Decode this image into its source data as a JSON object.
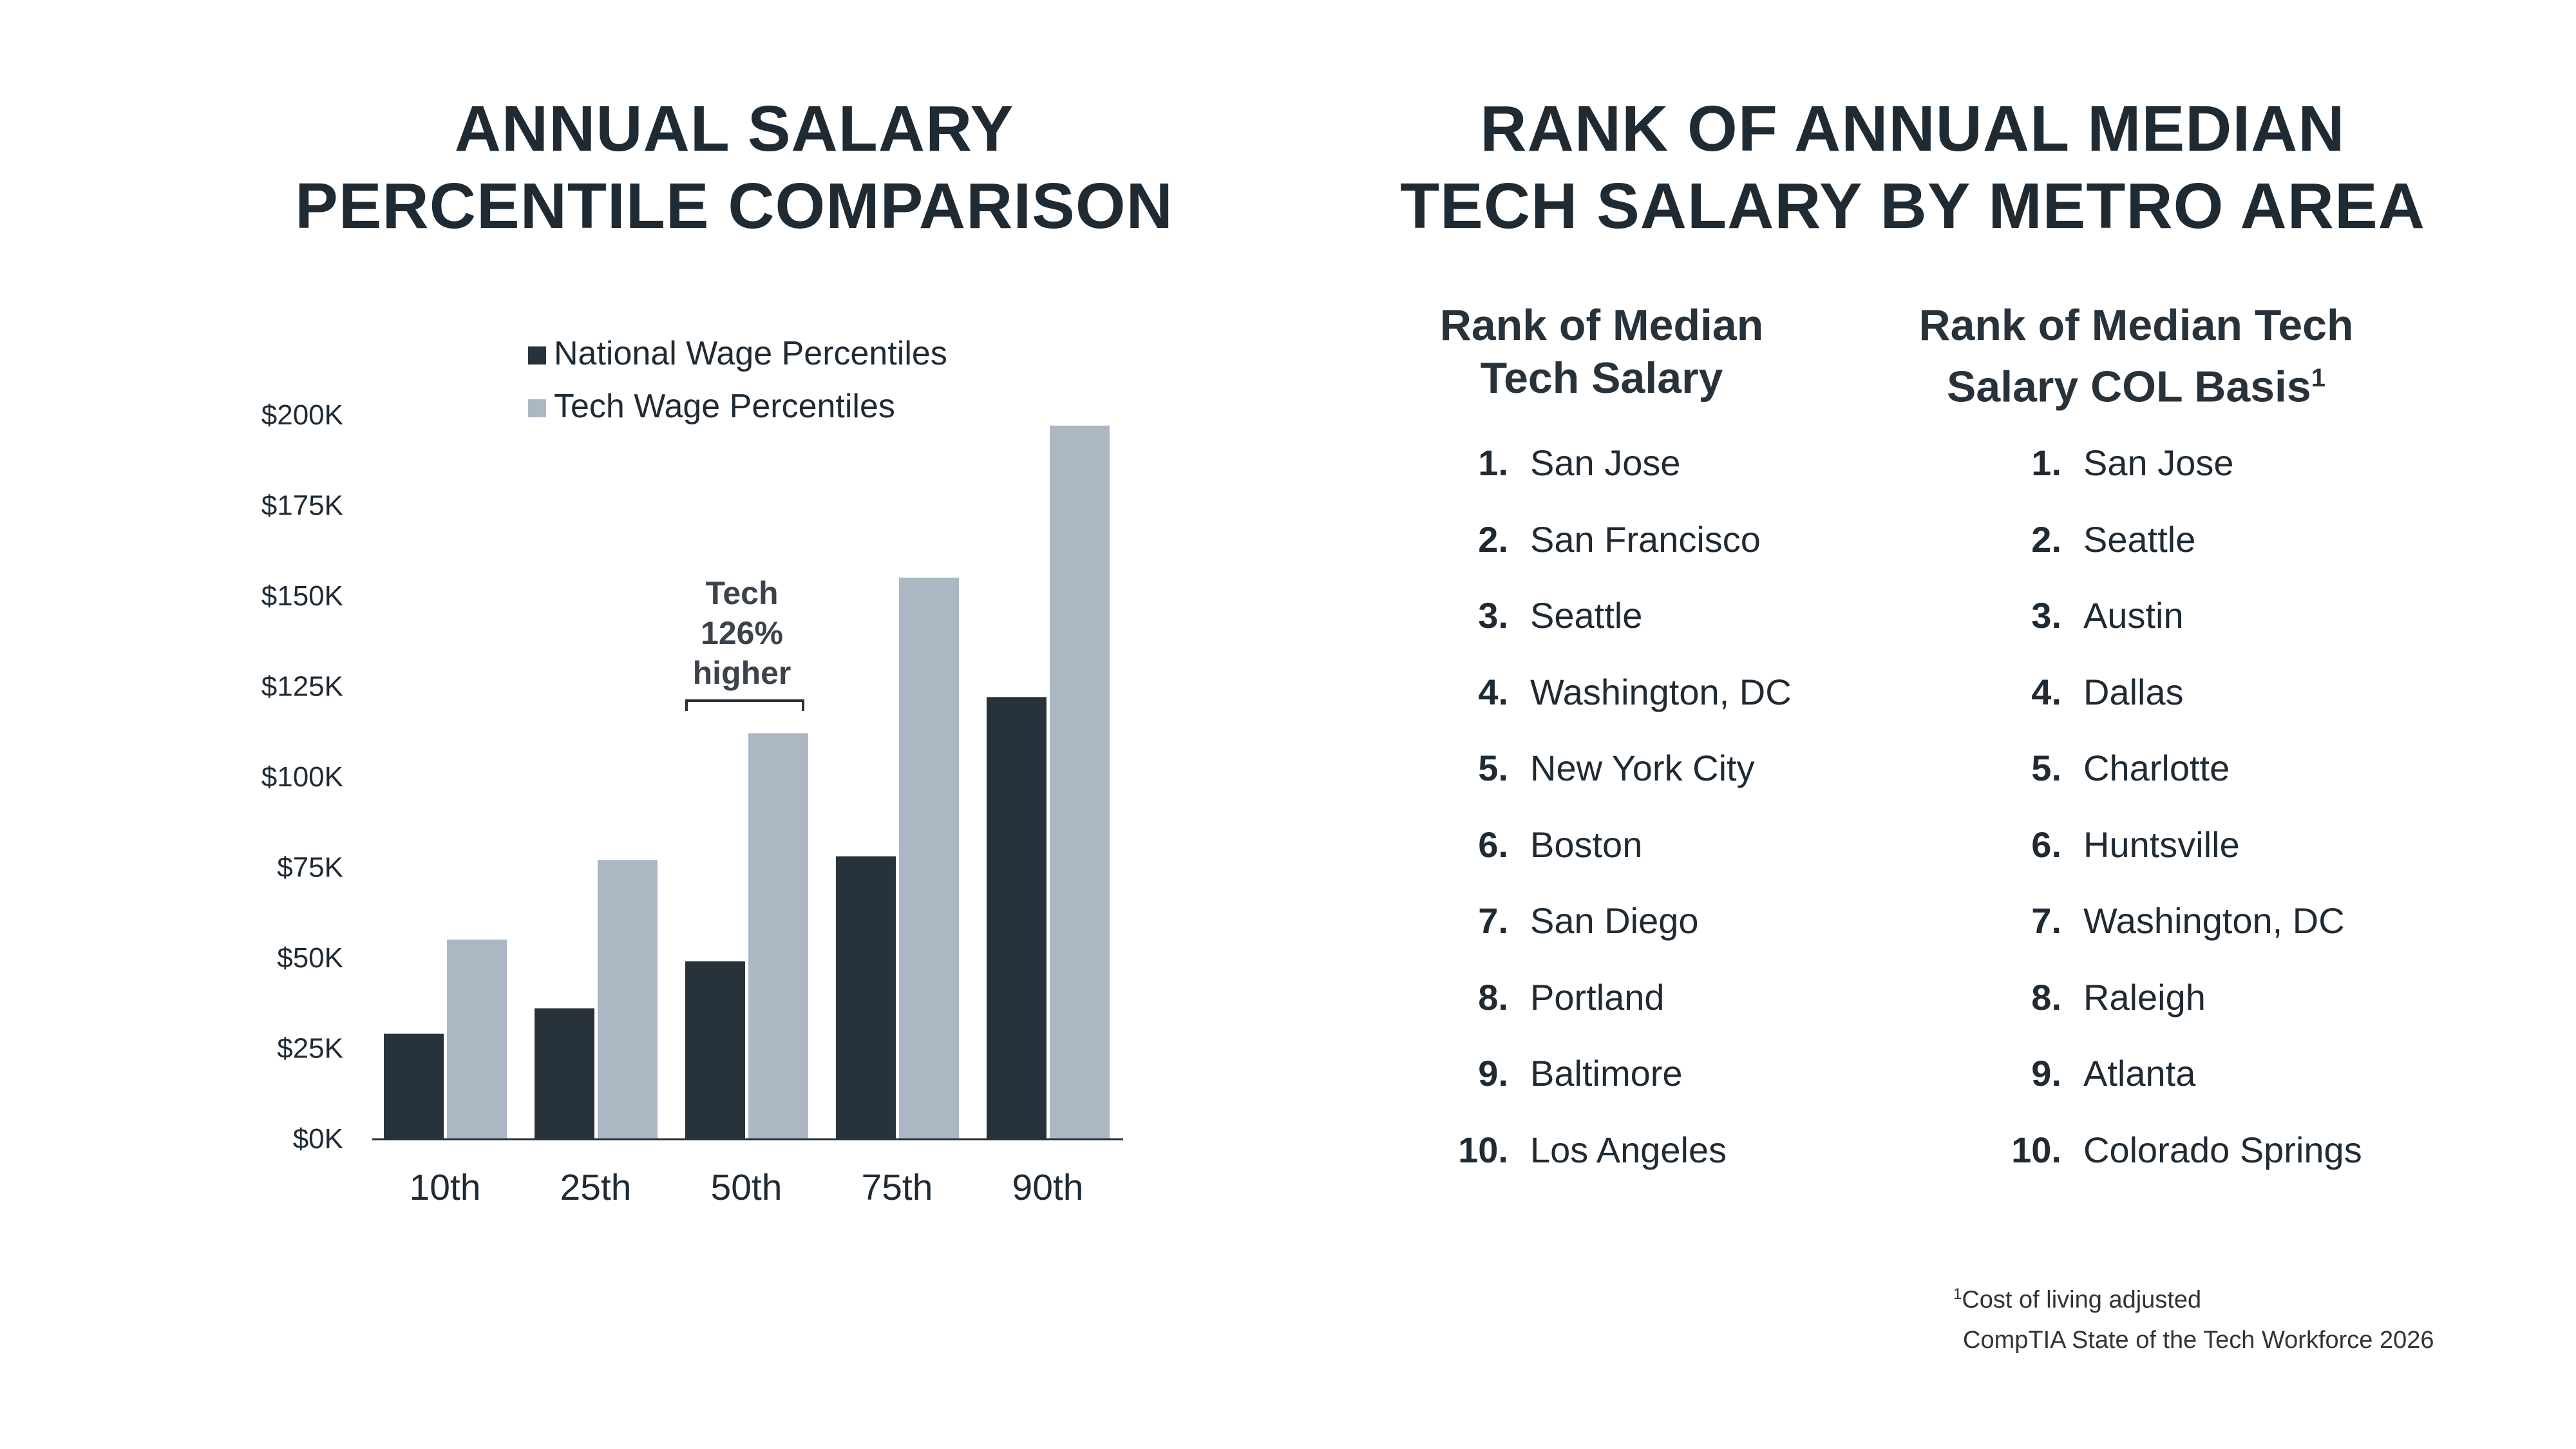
{
  "left_title": [
    "ANNUAL SALARY",
    "PERCENTILE COMPARISON"
  ],
  "right_title": [
    "RANK OF ANNUAL MEDIAN",
    "TECH SALARY BY METRO AREA"
  ],
  "chart_data": {
    "type": "bar",
    "title": "ANNUAL SALARY PERCENTILE COMPARISON",
    "categories": [
      "10th",
      "25th",
      "50th",
      "75th",
      "90th"
    ],
    "series": [
      {
        "name": "National Wage Percentiles",
        "color": "#28323b",
        "values": [
          29,
          36,
          49,
          78,
          122
        ]
      },
      {
        "name": "Tech Wage Percentiles",
        "color": "#abb8c3",
        "values": [
          55,
          77,
          112,
          155,
          197
        ]
      }
    ],
    "unit": "thousands USD",
    "ylim": [
      0,
      200
    ],
    "yticks": [
      "$0K",
      "$25K",
      "$50K",
      "$75K",
      "$100K",
      "$125K",
      "$150K",
      "$175K",
      "$200K"
    ],
    "legend": "top",
    "grid": false,
    "annotation": {
      "category": "50th",
      "lines": [
        "Tech",
        "126%",
        "higher"
      ]
    }
  },
  "rankings": {
    "col1_header": [
      "Rank of Median",
      "Tech Salary"
    ],
    "col2_header": [
      "Rank of Median Tech",
      "Salary COL Basis"
    ],
    "col2_sup": "1",
    "col1": [
      "San Jose",
      "San Francisco",
      "Seattle",
      "Washington, DC",
      "New York City",
      "Boston",
      "San Diego",
      "Portland",
      "Baltimore",
      "Los Angeles"
    ],
    "col2": [
      "San Jose",
      "Seattle",
      "Austin",
      "Dallas",
      "Charlotte",
      "Huntsville",
      "Washington, DC",
      "Raleigh",
      "Atlanta",
      "Colorado Springs"
    ]
  },
  "footnote": {
    "sup": "1",
    "text": "Cost of living adjusted",
    "source": "CompTIA State of the Tech Workforce 2026"
  }
}
